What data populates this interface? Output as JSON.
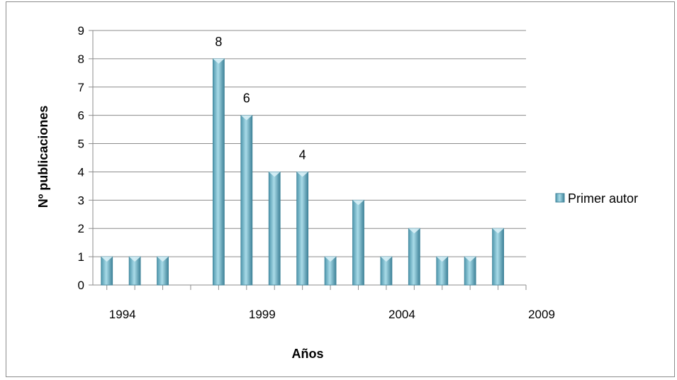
{
  "chart_data": {
    "type": "bar",
    "title": "",
    "xlabel": "Años",
    "ylabel": "Nº publicaciones",
    "xlim": [
      1993.5,
      2009
    ],
    "ylim": [
      0,
      9
    ],
    "x_ticks": [
      1994,
      1999,
      2004,
      2009
    ],
    "y_ticks": [
      0,
      1,
      2,
      3,
      4,
      5,
      6,
      7,
      8,
      9
    ],
    "grid": true,
    "legend_position": "right",
    "series": [
      {
        "name": "Primer autor",
        "color": "#7fc4d6",
        "x": [
          1994,
          1995,
          1996,
          1998,
          1999,
          2000,
          2001,
          2002,
          2003,
          2004,
          2005,
          2006,
          2007,
          2008
        ],
        "values": [
          1,
          1,
          1,
          8,
          6,
          4,
          4,
          1,
          3,
          1,
          2,
          1,
          1,
          2
        ]
      }
    ],
    "data_labels": [
      {
        "x": 1998,
        "text": "8"
      },
      {
        "x": 1999,
        "text": "6"
      },
      {
        "x": 2001,
        "text": "4"
      }
    ]
  }
}
